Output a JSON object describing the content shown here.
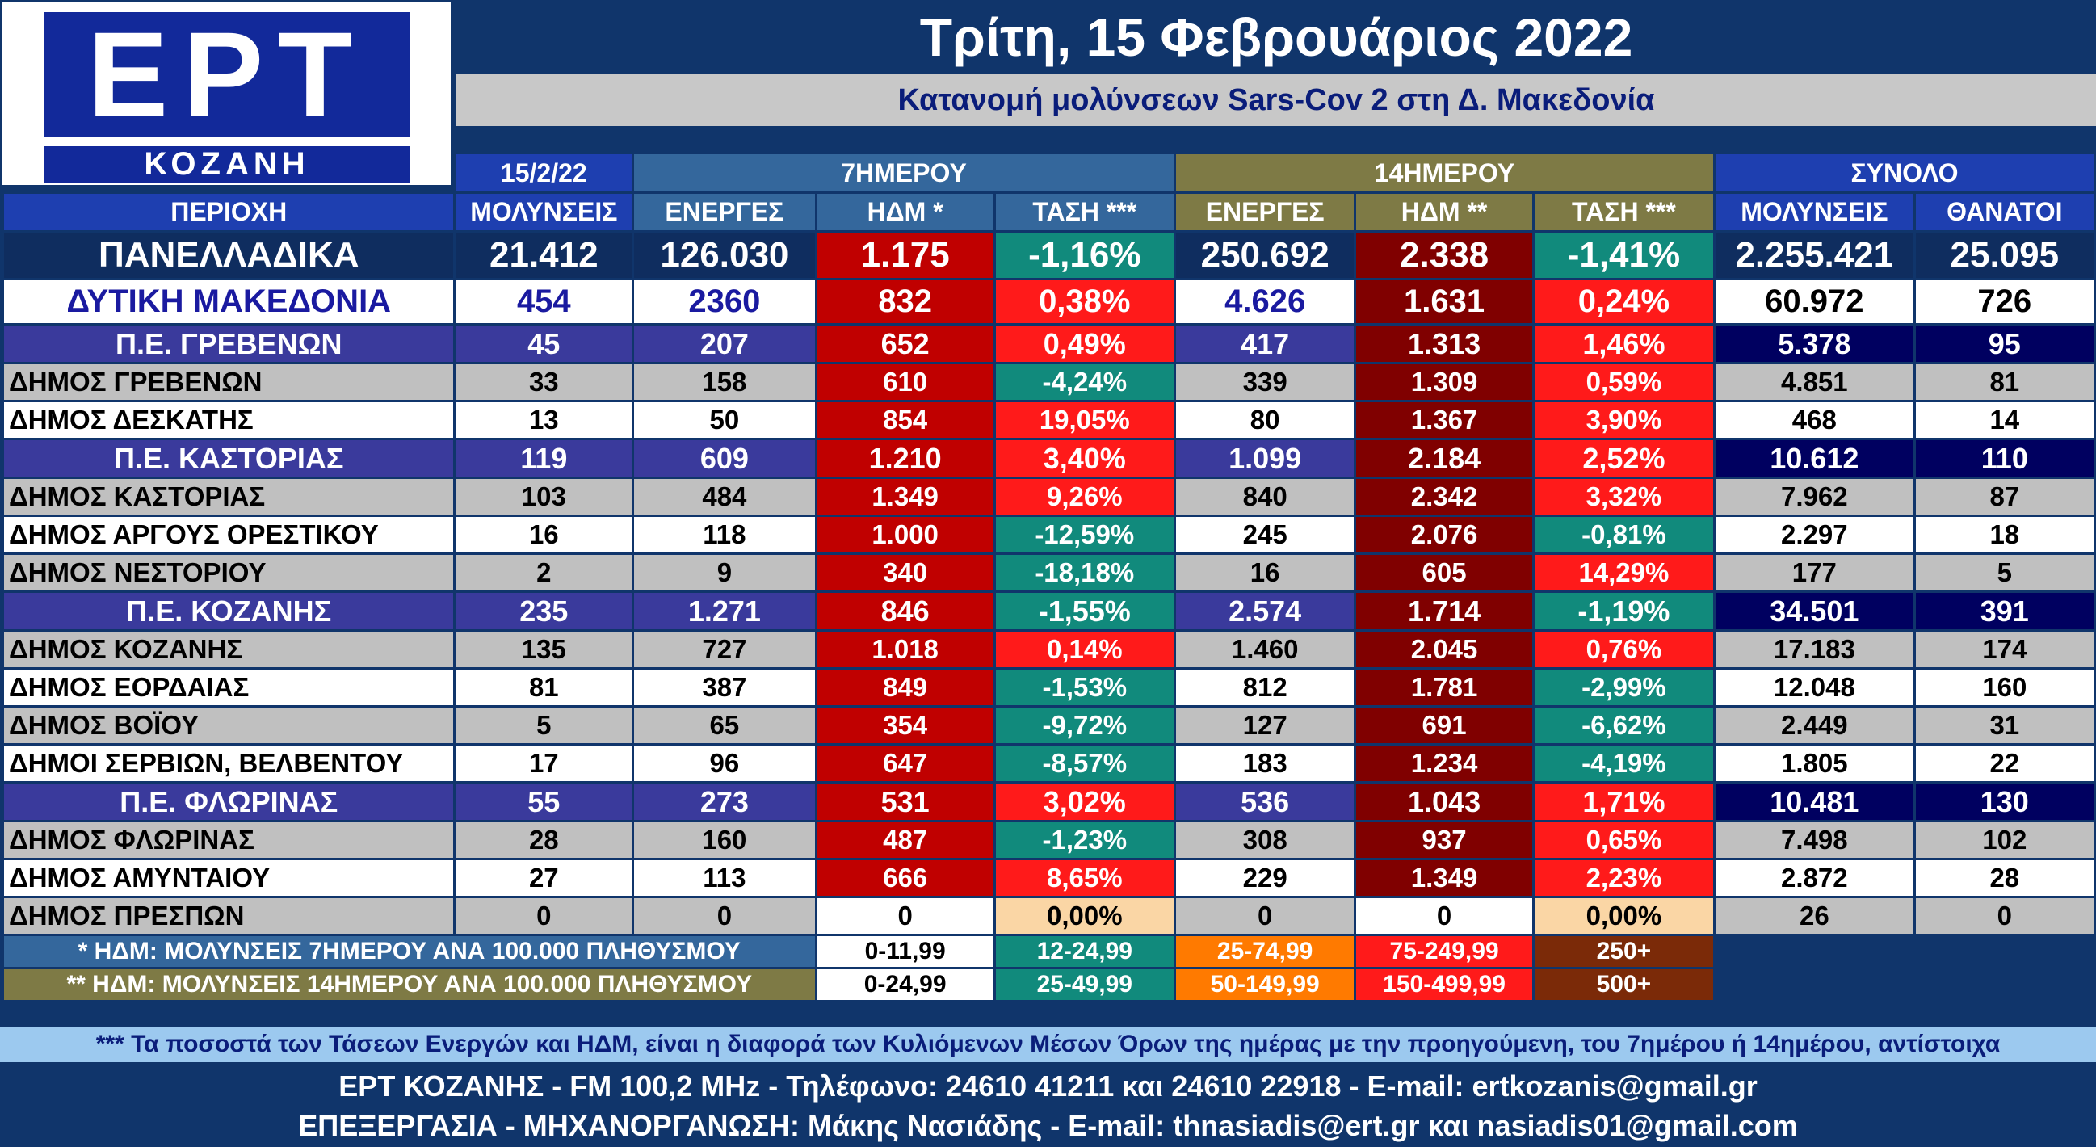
{
  "logo": {
    "ert": "ΕΡΤ",
    "kozani": "ΚΟΖΑΝΗ"
  },
  "title": "Τρίτη, 15 Φεβρουάριος 2022",
  "subtitle": "Κατανομή μολύνσεων Sars-Cov 2 στη Δ. Μακεδονία",
  "header": {
    "date": "15/2/22",
    "group7": "7ΗΜΕΡΟΥ",
    "group14": "14ΗΜΕΡΟΥ",
    "total": "ΣΥΝΟΛΟ",
    "columns": [
      "ΠΕΡΙΟΧΗ",
      "ΜΟΛΥΝΣΕΙΣ",
      "ΕΝΕΡΓΕΣ",
      "ΗΔΜ *",
      "ΤΑΣΗ ***",
      "ΕΝΕΡΓΕΣ",
      "ΗΔΜ **",
      "ΤΑΣΗ ***",
      "ΜΟΛΥΝΣΕΙΣ",
      "ΘΑΝΑΤΟΙ"
    ]
  },
  "rows": [
    {
      "type": "nat",
      "name": "ΠΑΝΕΛΛΑΔΙΚΑ",
      "inf": "21.412",
      "act7": "126.030",
      "idm7": "1.175",
      "t7": "-1,16%",
      "act14": "250.692",
      "idm14": "2.338",
      "t14": "-1,41%",
      "total": "2.255.421",
      "deaths": "25.095"
    },
    {
      "type": "reg",
      "name": "ΔΥΤΙΚΗ ΜΑΚΕΔΟΝΙΑ",
      "inf": "454",
      "act7": "2360",
      "idm7": "832",
      "t7": "0,38%",
      "act14": "4.626",
      "idm14": "1.631",
      "t14": "0,24%",
      "total": "60.972",
      "deaths": "726"
    },
    {
      "type": "pe",
      "name": "Π.Ε. ΓΡΕΒΕΝΩΝ",
      "inf": "45",
      "act7": "207",
      "idm7": "652",
      "t7": "0,49%",
      "act14": "417",
      "idm14": "1.313",
      "t14": "1,46%",
      "total": "5.378",
      "deaths": "95"
    },
    {
      "type": "d",
      "shade": "gray",
      "name": "ΔΗΜΟΣ ΓΡΕΒΕΝΩΝ",
      "inf": "33",
      "act7": "158",
      "idm7": "610",
      "t7": "-4,24%",
      "act14": "339",
      "idm14": "1.309",
      "t14": "0,59%",
      "total": "4.851",
      "deaths": "81"
    },
    {
      "type": "d",
      "shade": "white",
      "name": "ΔΗΜΟΣ ΔΕΣΚΑΤΗΣ",
      "inf": "13",
      "act7": "50",
      "idm7": "854",
      "t7": "19,05%",
      "act14": "80",
      "idm14": "1.367",
      "t14": "3,90%",
      "total": "468",
      "deaths": "14"
    },
    {
      "type": "pe",
      "name": "Π.Ε. ΚΑΣΤΟΡΙΑΣ",
      "inf": "119",
      "act7": "609",
      "idm7": "1.210",
      "t7": "3,40%",
      "act14": "1.099",
      "idm14": "2.184",
      "t14": "2,52%",
      "total": "10.612",
      "deaths": "110"
    },
    {
      "type": "d",
      "shade": "gray",
      "name": "ΔΗΜΟΣ ΚΑΣΤΟΡΙΑΣ",
      "inf": "103",
      "act7": "484",
      "idm7": "1.349",
      "t7": "9,26%",
      "act14": "840",
      "idm14": "2.342",
      "t14": "3,32%",
      "total": "7.962",
      "deaths": "87"
    },
    {
      "type": "d",
      "shade": "white",
      "name": "ΔΗΜΟΣ ΑΡΓΟΥΣ ΟΡΕΣΤΙΚΟΥ",
      "inf": "16",
      "act7": "118",
      "idm7": "1.000",
      "t7": "-12,59%",
      "act14": "245",
      "idm14": "2.076",
      "t14": "-0,81%",
      "total": "2.297",
      "deaths": "18"
    },
    {
      "type": "d",
      "shade": "gray",
      "name": "ΔΗΜΟΣ ΝΕΣΤΟΡΙΟΥ",
      "inf": "2",
      "act7": "9",
      "idm7": "340",
      "t7": "-18,18%",
      "act14": "16",
      "idm14": "605",
      "t14": "14,29%",
      "total": "177",
      "deaths": "5"
    },
    {
      "type": "pe",
      "name": "Π.Ε. ΚΟΖΑΝΗΣ",
      "inf": "235",
      "act7": "1.271",
      "idm7": "846",
      "t7": "-1,55%",
      "act14": "2.574",
      "idm14": "1.714",
      "t14": "-1,19%",
      "total": "34.501",
      "deaths": "391"
    },
    {
      "type": "d",
      "shade": "gray",
      "name": "ΔΗΜΟΣ ΚΟΖΑΝΗΣ",
      "inf": "135",
      "act7": "727",
      "idm7": "1.018",
      "t7": "0,14%",
      "act14": "1.460",
      "idm14": "2.045",
      "t14": "0,76%",
      "total": "17.183",
      "deaths": "174"
    },
    {
      "type": "d",
      "shade": "white",
      "name": "ΔΗΜΟΣ ΕΟΡΔΑΙΑΣ",
      "inf": "81",
      "act7": "387",
      "idm7": "849",
      "t7": "-1,53%",
      "act14": "812",
      "idm14": "1.781",
      "t14": "-2,99%",
      "total": "12.048",
      "deaths": "160"
    },
    {
      "type": "d",
      "shade": "gray",
      "name": "ΔΗΜΟΣ ΒΟΪΟΥ",
      "inf": "5",
      "act7": "65",
      "idm7": "354",
      "t7": "-9,72%",
      "act14": "127",
      "idm14": "691",
      "t14": "-6,62%",
      "total": "2.449",
      "deaths": "31"
    },
    {
      "type": "d",
      "shade": "white",
      "name": "ΔΗΜΟΙ ΣΕΡΒΙΩΝ, ΒΕΛΒΕΝΤΟΥ",
      "inf": "17",
      "act7": "96",
      "idm7": "647",
      "t7": "-8,57%",
      "act14": "183",
      "idm14": "1.234",
      "t14": "-4,19%",
      "total": "1.805",
      "deaths": "22"
    },
    {
      "type": "pe",
      "name": "Π.Ε. ΦΛΩΡΙΝΑΣ",
      "inf": "55",
      "act7": "273",
      "idm7": "531",
      "t7": "3,02%",
      "act14": "536",
      "idm14": "1.043",
      "t14": "1,71%",
      "total": "10.481",
      "deaths": "130"
    },
    {
      "type": "d",
      "shade": "gray",
      "name": "ΔΗΜΟΣ ΦΛΩΡΙΝΑΣ",
      "inf": "28",
      "act7": "160",
      "idm7": "487",
      "t7": "-1,23%",
      "act14": "308",
      "idm14": "937",
      "t14": "0,65%",
      "total": "7.498",
      "deaths": "102"
    },
    {
      "type": "d",
      "shade": "white",
      "name": "ΔΗΜΟΣ ΑΜΥΝΤΑΙΟΥ",
      "inf": "27",
      "act7": "113",
      "idm7": "666",
      "t7": "8,65%",
      "act14": "229",
      "idm14": "1.349",
      "t14": "2,23%",
      "total": "2.872",
      "deaths": "28"
    },
    {
      "type": "d",
      "shade": "gray",
      "name": "ΔΗΜΟΣ ΠΡΕΣΠΩΝ",
      "inf": "0",
      "act7": "0",
      "idm7": "0",
      "t7": "0,00%",
      "act14": "0",
      "idm14": "0",
      "t14": "0,00%",
      "total": "26",
      "deaths": "0"
    }
  ],
  "legend": {
    "idm7_label": "* ΗΔΜ: ΜΟΛΥΝΣΕΙΣ 7ΗΜΕΡΟΥ ΑΝΑ 100.000 ΠΛΗΘΥΣΜΟΥ",
    "idm7_ranges": [
      "0-11,99",
      "12-24,99",
      "25-74,99",
      "75-249,99",
      "250+"
    ],
    "idm14_label": "** ΗΔΜ: ΜΟΛΥΝΣΕΙΣ 14ΗΜΕΡΟΥ ΑΝΑ 100.000 ΠΛΗΘΥΣΜΟΥ",
    "idm14_ranges": [
      "0-24,99",
      "25-49,99",
      "50-149,99",
      "150-499,99",
      "500+"
    ],
    "range_colors": [
      "#ffffff",
      "#118a7c",
      "#ff7a00",
      "#ff1a1a",
      "#7b2a08"
    ]
  },
  "note": "*** Τα ποσοστά των Τάσεων Ενεργών και ΗΔΜ, είναι η διαφορά των Κυλιόμενων Μέσων Όρων της ημέρας με την προηγούμενη, του 7ημέρου ή 14ημέρου, αντίστοιχα",
  "footer": {
    "line1": "ΕΡΤ ΚΟΖΑΝΗΣ - FM 100,2 MHz - Τηλέφωνο:  24610 41211 και 24610 22918 - E-mail: ertkozanis@gmail.gr",
    "line2": "ΕΠΕΞΕΡΓΑΣΙΑ  -  ΜΗΧΑΝΟΡΓΑΝΩΣΗ: Μάκης Νασιάδης   -   E-mail: thnasiadis@ert.gr και nasiadis01@gmail.com"
  }
}
